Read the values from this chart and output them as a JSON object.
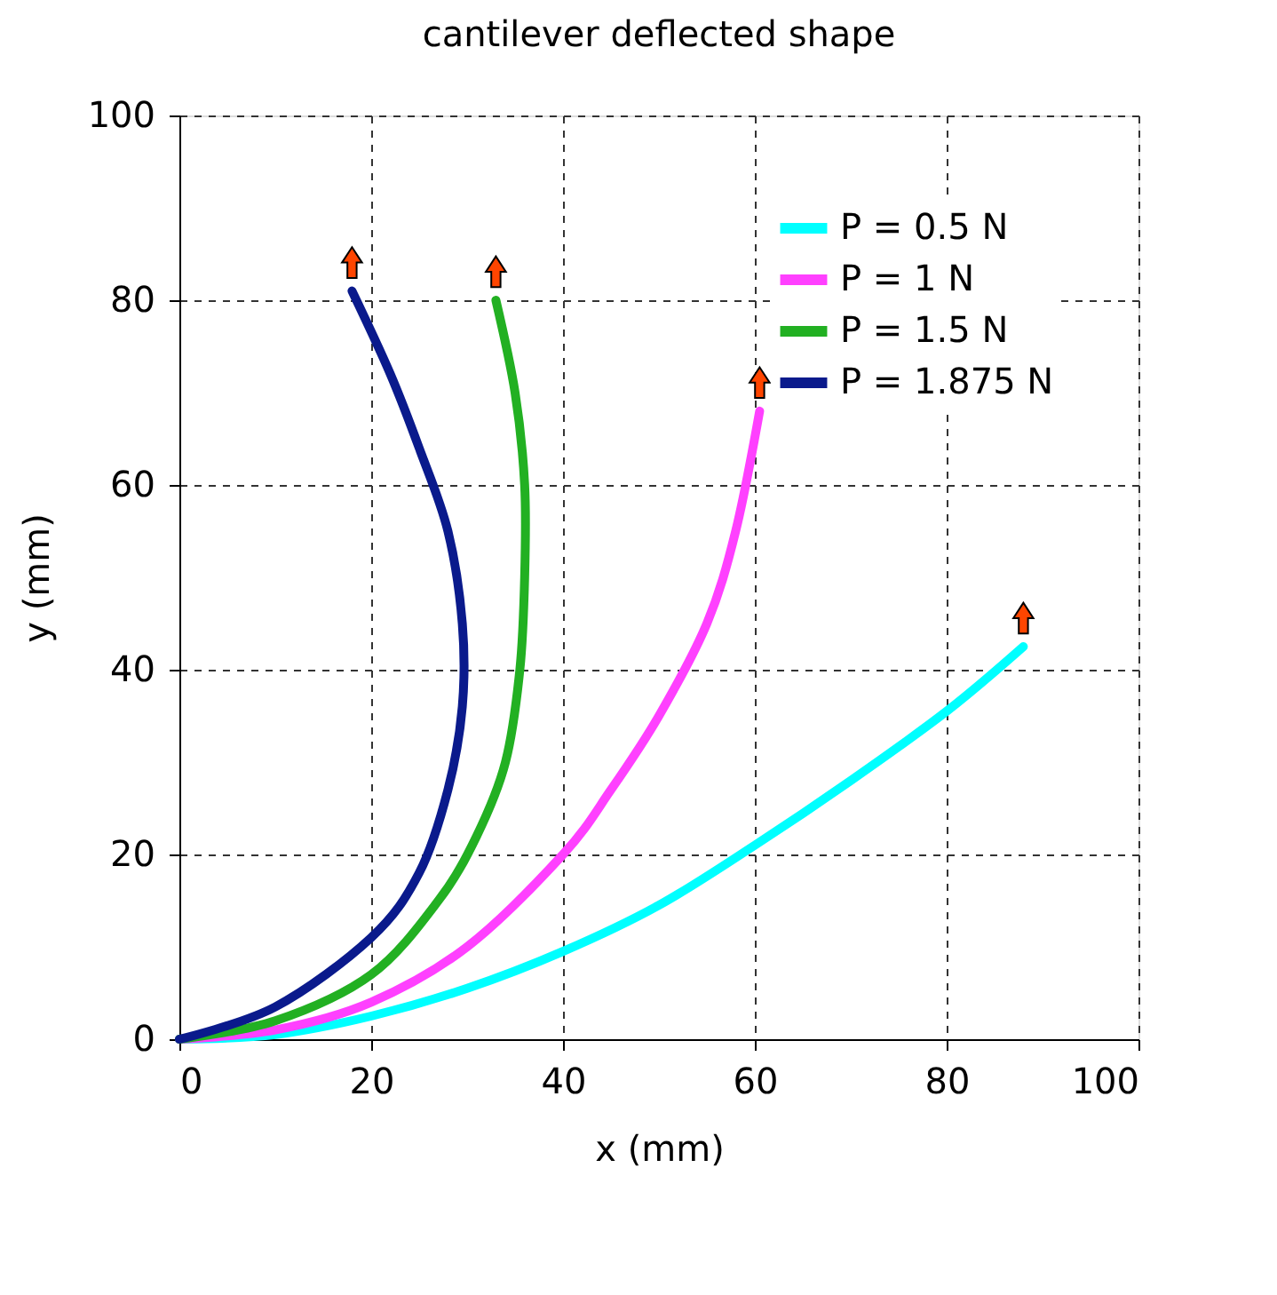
{
  "chart_data": {
    "type": "line",
    "title": "cantilever deflected shape",
    "xlabel": "x (mm)",
    "ylabel": "y (mm)",
    "xlim": [
      0,
      100
    ],
    "ylim": [
      0,
      100
    ],
    "xticks": [
      0,
      20,
      40,
      60,
      80,
      100
    ],
    "yticks": [
      0,
      20,
      40,
      60,
      80,
      100
    ],
    "grid": true,
    "legend": "top right",
    "line_style": "solid",
    "marker": "none",
    "series": [
      {
        "name": "P = 0.5 N",
        "color": "#00ffff",
        "x": [
          0,
          10,
          20,
          30,
          40,
          50,
          60,
          70,
          80,
          88
        ],
        "values": [
          0,
          0.5,
          2.5,
          5.5,
          9.5,
          14.5,
          21,
          28,
          35.5,
          42.5
        ]
      },
      {
        "name": "P = 1 N",
        "color": "#ff40ff",
        "x": [
          0,
          10,
          20,
          30,
          40,
          45,
          50,
          55,
          58,
          60.5
        ],
        "values": [
          0,
          1,
          4,
          10,
          20,
          27,
          35,
          45,
          55,
          68
        ]
      },
      {
        "name": "P = 1.5 N",
        "color": "#22b022",
        "x": [
          0,
          10,
          20,
          27,
          31,
          34,
          35.5,
          36,
          36,
          35,
          33
        ],
        "values": [
          0,
          2,
          7,
          15,
          22,
          30,
          40,
          50,
          60,
          70,
          80
        ]
      },
      {
        "name": "P = 1.875 N",
        "color": "#0a1a8c",
        "x": [
          0,
          10,
          20,
          25,
          28,
          29.5,
          29.5,
          28,
          25,
          22,
          18
        ],
        "values": [
          0,
          3.5,
          11,
          18,
          27,
          36,
          45,
          55,
          64,
          72,
          81
        ]
      }
    ]
  }
}
